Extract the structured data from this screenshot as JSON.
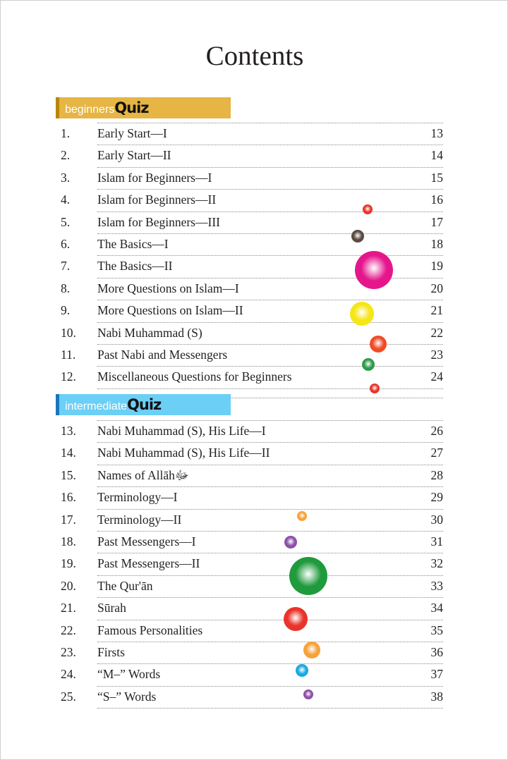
{
  "title": "Contents",
  "sections": [
    {
      "label_light": "beginners",
      "label_bold": "Quiz",
      "color": "#e6b544",
      "items": [
        {
          "num": "1.",
          "title": "Early Start—I",
          "page": "13"
        },
        {
          "num": "2.",
          "title": "Early Start—II",
          "page": "14"
        },
        {
          "num": "3.",
          "title": "Islam for Beginners—I",
          "page": "15"
        },
        {
          "num": "4.",
          "title": "Islam for Beginners—II",
          "page": "16"
        },
        {
          "num": "5.",
          "title": "Islam for Beginners—III",
          "page": "17"
        },
        {
          "num": "6.",
          "title": "The Basics—I",
          "page": "18"
        },
        {
          "num": "7.",
          "title": "The Basics—II",
          "page": "19"
        },
        {
          "num": "8.",
          "title": "More Questions on Islam—I",
          "page": "20"
        },
        {
          "num": "9.",
          "title": "More Questions on Islam—II",
          "page": "21"
        },
        {
          "num": "10.",
          "title": "Nabi Muhammad (S)",
          "page": "22"
        },
        {
          "num": "11.",
          "title": "Past Nabi and Messengers",
          "page": "23"
        },
        {
          "num": "12.",
          "title": "Miscellaneous Questions for Beginners",
          "page": "24"
        }
      ]
    },
    {
      "label_light": "intermediate",
      "label_bold": "Quiz",
      "color": "#6ccff6",
      "items": [
        {
          "num": "13.",
          "title": "Nabi Muhammad (S), His Life—I",
          "page": "26"
        },
        {
          "num": "14.",
          "title": "Nabi Muhammad (S), His Life—II",
          "page": "27"
        },
        {
          "num": "15.",
          "title": "Names of Allāhﷻ",
          "page": "28"
        },
        {
          "num": "16.",
          "title": "Terminology—I",
          "page": "29"
        },
        {
          "num": "17.",
          "title": "Terminology—II",
          "page": "30"
        },
        {
          "num": "18.",
          "title": "Past Messengers—I",
          "page": "31"
        },
        {
          "num": "19.",
          "title": "Past Messengers—II",
          "page": "32"
        },
        {
          "num": "20.",
          "title": "The Qur'ān",
          "page": "33"
        },
        {
          "num": "21.",
          "title": "Sūrah",
          "page": "34"
        },
        {
          "num": "22.",
          "title": "Famous Personalities",
          "page": "35"
        },
        {
          "num": "23.",
          "title": "Firsts",
          "page": "36"
        },
        {
          "num": "24.",
          "title": "“M–” Words",
          "page": "37"
        },
        {
          "num": "25.",
          "title": "“S–” Words",
          "page": "38"
        }
      ]
    }
  ],
  "bubble_colors": [
    "#e8342a",
    "#5a4a42",
    "#e5168c",
    "#f5e616",
    "#ef4b26",
    "#2e9a48",
    "#e8342a",
    "#f7a13a",
    "#8d4fa8",
    "#1f9a3c",
    "#e8342a",
    "#f7a13a",
    "#1aa8e0",
    "#8d4fa8"
  ]
}
